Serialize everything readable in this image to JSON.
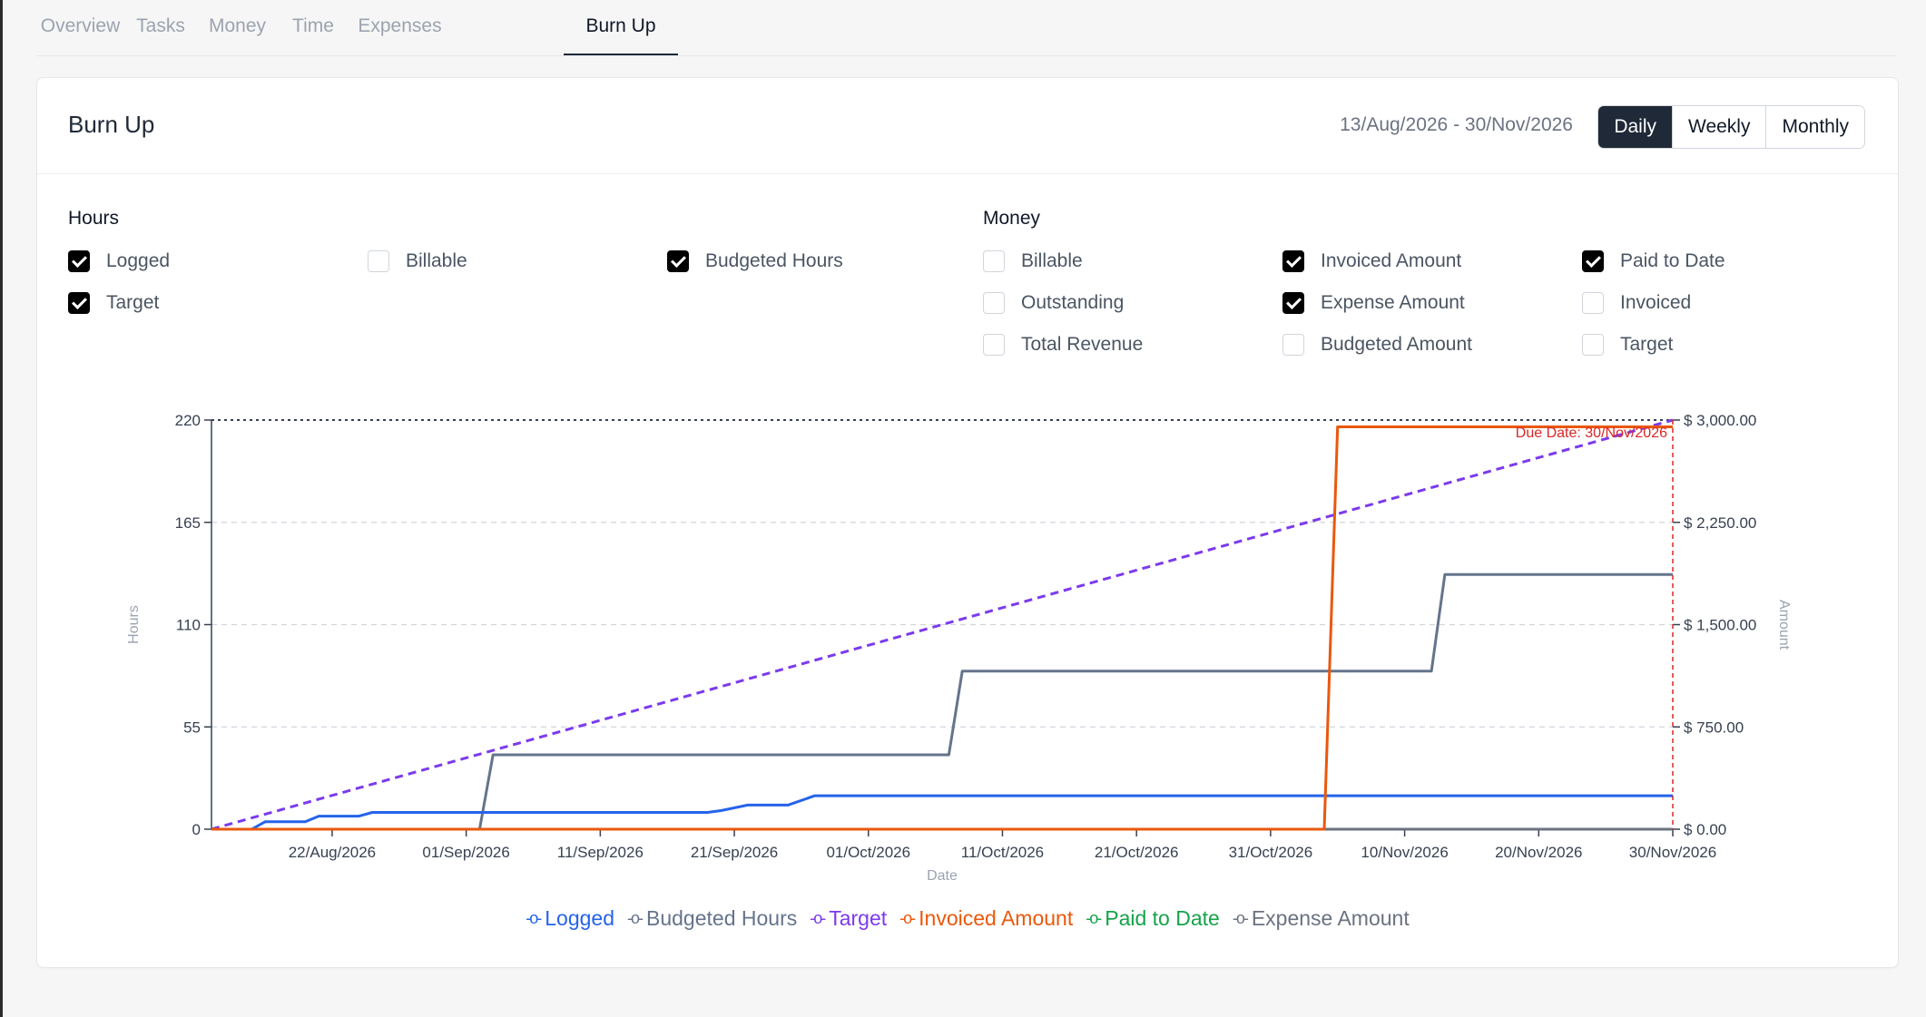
{
  "tabs": [
    "Overview",
    "Tasks",
    "Money",
    "Time",
    "Expenses",
    "Burn Up"
  ],
  "active_tab": "Burn Up",
  "card": {
    "title": "Burn Up",
    "date_range": "13/Aug/2026 - 30/Nov/2026",
    "granularity": [
      "Daily",
      "Weekly",
      "Monthly"
    ],
    "granularity_selected": "Daily"
  },
  "hours": {
    "title": "Hours",
    "options": [
      {
        "label": "Logged",
        "checked": true
      },
      {
        "label": "Billable",
        "checked": false
      },
      {
        "label": "Budgeted Hours",
        "checked": true
      },
      {
        "label": "Target",
        "checked": true
      }
    ]
  },
  "money": {
    "title": "Money",
    "options": [
      {
        "label": "Billable",
        "checked": false
      },
      {
        "label": "Invoiced Amount",
        "checked": true
      },
      {
        "label": "Paid to Date",
        "checked": true
      },
      {
        "label": "Outstanding",
        "checked": false
      },
      {
        "label": "Expense Amount",
        "checked": true
      },
      {
        "label": "Invoiced",
        "checked": false
      },
      {
        "label": "Total Revenue",
        "checked": false
      },
      {
        "label": "Budgeted Amount",
        "checked": false
      },
      {
        "label": "Target",
        "checked": false
      }
    ]
  },
  "colors": {
    "logged": "#2563eb",
    "budgeted_hours": "#64748b",
    "target": "#7c3aed",
    "invoiced_amount": "#ea580c",
    "paid_to_date": "#16a34a",
    "expense_amount": "#6b7280",
    "due_date": "#dc2626"
  },
  "chart_data": {
    "type": "line",
    "xlabel": "Date",
    "ylabel_left": "Hours",
    "ylabel_right": "Amount",
    "x_ticks": [
      "22/Aug/2026",
      "01/Sep/2026",
      "11/Sep/2026",
      "21/Sep/2026",
      "01/Oct/2026",
      "11/Oct/2026",
      "21/Oct/2026",
      "31/Oct/2026",
      "10/Nov/2026",
      "20/Nov/2026",
      "30/Nov/2026"
    ],
    "xlim": [
      "13/Aug/2026",
      "30/Nov/2026"
    ],
    "y_left_ticks": [
      "0",
      "55",
      "110",
      "165",
      "220"
    ],
    "y_left_range": [
      0,
      220
    ],
    "y_right_ticks": [
      "$ 0.00",
      "$ 750.00",
      "$ 1,500.00",
      "$ 2,250.00",
      "$ 3,000.00"
    ],
    "y_right_range": [
      0,
      3000
    ],
    "grid": true,
    "legend_position": "bottom",
    "annotation": "Due Date: 30/Nov/2026",
    "series": [
      {
        "name": "Logged",
        "axis": "left",
        "style": "solid",
        "points": [
          [
            "13/Aug/2026",
            0
          ],
          [
            "16/Aug/2026",
            0
          ],
          [
            "17/Aug/2026",
            4
          ],
          [
            "20/Aug/2026",
            4
          ],
          [
            "21/Aug/2026",
            7
          ],
          [
            "24/Aug/2026",
            7
          ],
          [
            "25/Aug/2026",
            9
          ],
          [
            "19/Sep/2026",
            9
          ],
          [
            "20/Sep/2026",
            10
          ],
          [
            "22/Sep/2026",
            13
          ],
          [
            "25/Sep/2026",
            13
          ],
          [
            "27/Sep/2026",
            18
          ],
          [
            "30/Nov/2026",
            18
          ]
        ]
      },
      {
        "name": "Budgeted Hours",
        "axis": "left",
        "style": "solid",
        "points": [
          [
            "13/Aug/2026",
            0
          ],
          [
            "02/Sep/2026",
            0
          ],
          [
            "03/Sep/2026",
            40
          ],
          [
            "07/Oct/2026",
            40
          ],
          [
            "08/Oct/2026",
            85
          ],
          [
            "12/Nov/2026",
            85
          ],
          [
            "13/Nov/2026",
            137
          ],
          [
            "30/Nov/2026",
            137
          ]
        ]
      },
      {
        "name": "Target",
        "axis": "left",
        "style": "dashed",
        "points": [
          [
            "13/Aug/2026",
            0
          ],
          [
            "30/Nov/2026",
            220
          ]
        ]
      },
      {
        "name": "Invoiced Amount",
        "axis": "right",
        "style": "solid",
        "points": [
          [
            "13/Aug/2026",
            0
          ],
          [
            "04/Nov/2026",
            0
          ],
          [
            "05/Nov/2026",
            2950
          ],
          [
            "30/Nov/2026",
            2950
          ]
        ]
      },
      {
        "name": "Paid to Date",
        "axis": "right",
        "style": "dashed",
        "points": [
          [
            "13/Aug/2026",
            0
          ],
          [
            "30/Nov/2026",
            0
          ]
        ]
      },
      {
        "name": "Expense Amount",
        "axis": "right",
        "style": "solid",
        "points": [
          [
            "13/Aug/2026",
            0
          ],
          [
            "30/Nov/2026",
            0
          ]
        ]
      }
    ]
  }
}
